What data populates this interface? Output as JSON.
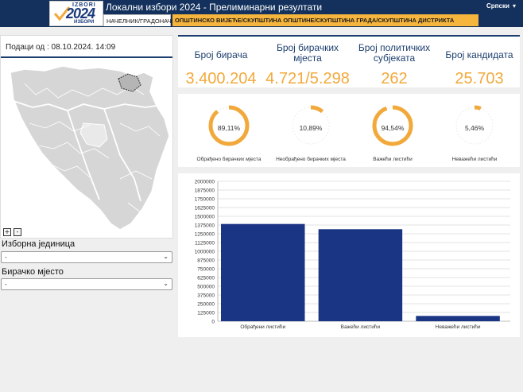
{
  "header": {
    "logo_top": "IZBORI",
    "logo_year": "2024",
    "logo_bottom": "ИЗБОРИ",
    "title": "Локални избори 2024 - Прелиминарни резултати",
    "tabs": [
      {
        "label": "НАЧЕЛНИК/ГРАДОНАЧЕЛНИК"
      },
      {
        "label": "ОПШТИНСКО ВИЈЕЋЕ/СКУПШТИНА ОПШТИНЕ/СКУПШТИНА ГРАДА/СКУПШТИНА ДИСТРИКТА"
      }
    ],
    "language": "Српски",
    "language_caret": "▾"
  },
  "left": {
    "data_as_of": "Подаци од : 08.10.2024. 14:09",
    "zoom_in": "+",
    "zoom_out": "-",
    "electoral_unit_label": "Изборна јединица",
    "electoral_unit_value": "-",
    "polling_station_label": "Бирачко мјесто",
    "polling_station_value": "-"
  },
  "stats": [
    {
      "label": "Број бирача",
      "value": "3.400.204"
    },
    {
      "label": "Број бирачких мјеста",
      "value": "4.721/5.298"
    },
    {
      "label": "Број политичких субјеката",
      "value": "262"
    },
    {
      "label": "Број кандидата",
      "value": "25.703"
    }
  ],
  "donuts": [
    {
      "percent_text": "89,11%",
      "fraction": 0.8911,
      "label": "Обрађено бирачких мјеста"
    },
    {
      "percent_text": "10,89%",
      "fraction": 0.1089,
      "label": "Необрађено бирачких мјеста"
    },
    {
      "percent_text": "94,54%",
      "fraction": 0.9454,
      "label": "Важећи листићи"
    },
    {
      "percent_text": "5,46%",
      "fraction": 0.0546,
      "label": "Неважећи листићи"
    }
  ],
  "colors": {
    "header": "#13315c",
    "accent": "#f2a93b",
    "bar": "#1b3585",
    "stat_label": "#1d3f6f"
  },
  "chart_data": {
    "type": "bar",
    "categories": [
      "Обрађени листићи",
      "Важећи листићи",
      "Неважећи листићи"
    ],
    "values": [
      1390000,
      1315000,
      76000
    ],
    "ylim": [
      0,
      2000000
    ],
    "yticks": [
      0,
      125000,
      250000,
      375000,
      500000,
      625000,
      750000,
      875000,
      1000000,
      1125000,
      1250000,
      1375000,
      1500000,
      1625000,
      1750000,
      1875000,
      2000000
    ],
    "grid": true
  }
}
